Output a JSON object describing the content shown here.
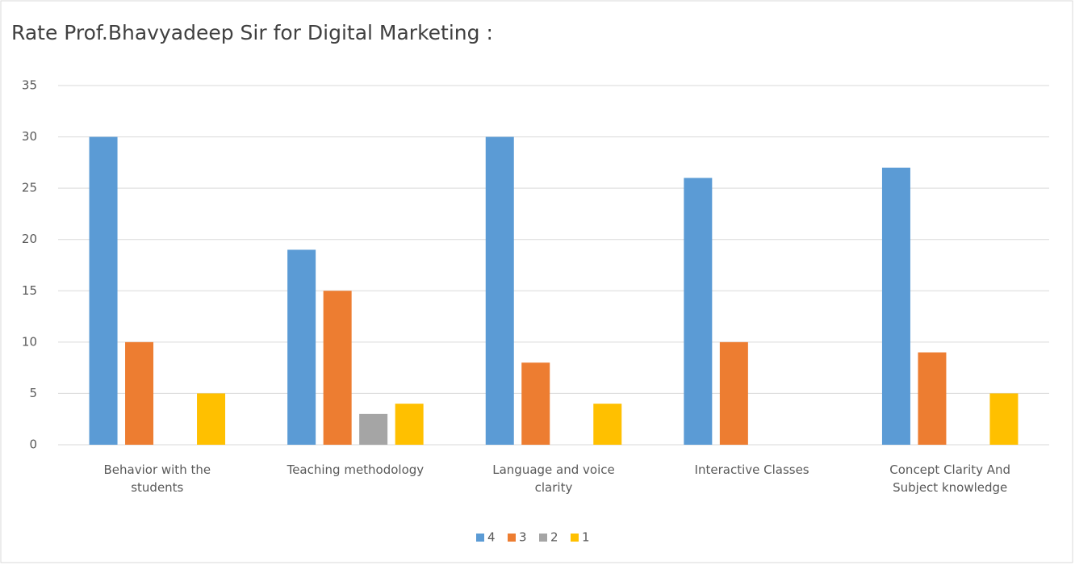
{
  "chart_data": {
    "type": "bar",
    "title": "Rate Prof.Bhavyadeep Sir for Digital Marketing :",
    "categories": [
      "Behavior with the students",
      "Teaching methodology",
      "Language and voice clarity",
      "Interactive Classes",
      "Concept Clarity And Subject knowledge"
    ],
    "series": [
      {
        "name": "4",
        "color": "#5b9bd5",
        "values": [
          30,
          19,
          30,
          26,
          27
        ]
      },
      {
        "name": "3",
        "color": "#ed7d31",
        "values": [
          10,
          15,
          8,
          10,
          9
        ]
      },
      {
        "name": "2",
        "color": "#a5a5a5",
        "values": [
          0,
          3,
          0,
          0,
          0
        ]
      },
      {
        "name": "1",
        "color": "#ffc000",
        "values": [
          5,
          4,
          4,
          0,
          5
        ]
      }
    ],
    "ylim": [
      0,
      35
    ],
    "yticks": [
      0,
      5,
      10,
      15,
      20,
      25,
      30,
      35
    ],
    "grid": true,
    "legend": "bottom"
  }
}
